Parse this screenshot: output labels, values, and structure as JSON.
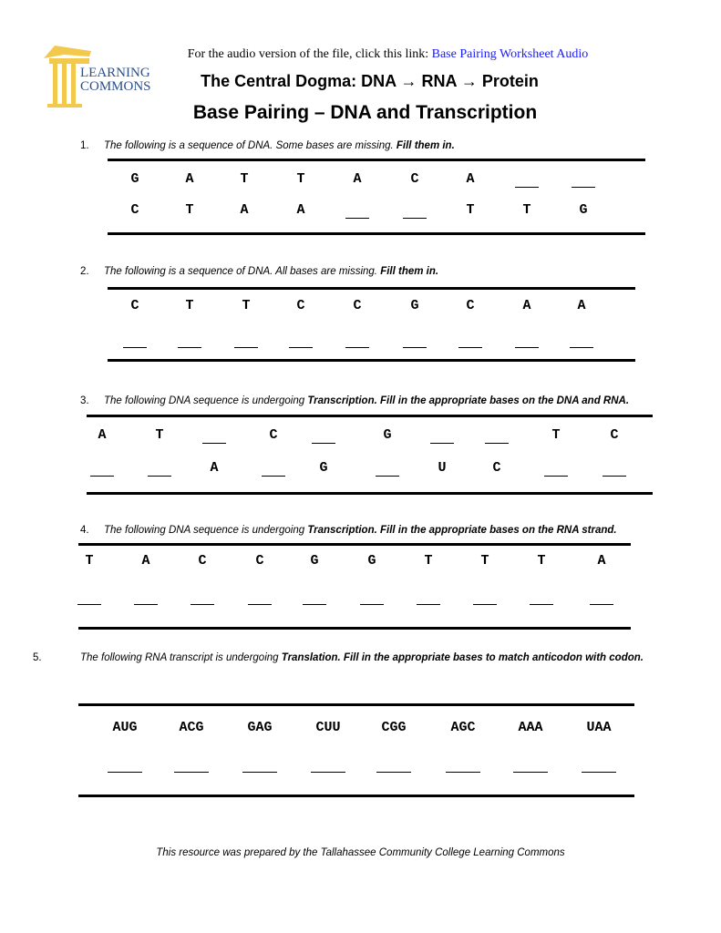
{
  "header": {
    "logo_text": "LEARNING COMMONS",
    "audio_prefix": "For the audio version of the file, click this link: ",
    "audio_link": "Base Pairing Worksheet Audio",
    "title": "The Central Dogma: DNA → RNA → Protein",
    "subtitle": "Base Pairing – DNA and Transcription"
  },
  "questions": [
    {
      "num": "1.",
      "text": "The following is a sequence of DNA. Some bases are missing. ",
      "bold": "Fill them in.",
      "rows": [
        [
          "G",
          "A",
          "T",
          "T",
          "A",
          "C",
          "A",
          "",
          ""
        ],
        [
          "C",
          "T",
          "A",
          "A",
          "",
          "",
          "T",
          "T",
          "G"
        ]
      ]
    },
    {
      "num": "2.",
      "text": "The following is a sequence of DNA. All bases are missing. ",
      "bold": "Fill them in.",
      "rows": [
        [
          "C",
          "T",
          "T",
          "C",
          "C",
          "G",
          "C",
          "A",
          "A"
        ],
        [
          "",
          "",
          "",
          "",
          "",
          "",
          "",
          "",
          ""
        ]
      ]
    },
    {
      "num": "3.",
      "text": "The following DNA sequence is undergoing ",
      "bold": "Transcription. Fill in the appropriate bases on the DNA and RNA.",
      "rows": [
        [
          "A",
          "T",
          "",
          "C",
          "",
          "G",
          "",
          "",
          "T",
          "C"
        ],
        [
          "",
          "",
          "A",
          "",
          "G",
          "",
          "U",
          "C",
          "",
          ""
        ]
      ]
    },
    {
      "num": "4.",
      "text": "The following DNA sequence is undergoing ",
      "bold": "Transcription. Fill in the appropriate bases on the RNA strand.",
      "rows": [
        [
          "T",
          "A",
          "C",
          "C",
          "G",
          "G",
          "T",
          "T",
          "T",
          "A"
        ],
        [
          "",
          "",
          "",
          "",
          "",
          "",
          "",
          "",
          "",
          ""
        ]
      ]
    },
    {
      "num": "5.",
      "text": "The following RNA transcript is undergoing ",
      "bold": "Translation. Fill in the appropriate bases to match anticodon with codon.",
      "rows": [
        [
          "AUG",
          "ACG",
          "GAG",
          "CUU",
          "CGG",
          "AGC",
          "AAA",
          "UAA"
        ],
        [
          "",
          "",
          "",
          "",
          "",
          "",
          "",
          ""
        ]
      ]
    }
  ],
  "footer": "This resource was prepared by the Tallahassee Community College Learning Commons",
  "colors": {
    "link": "#1a1aff",
    "logo_gold": "#f2c94c",
    "logo_blue": "#2b4f8c"
  }
}
